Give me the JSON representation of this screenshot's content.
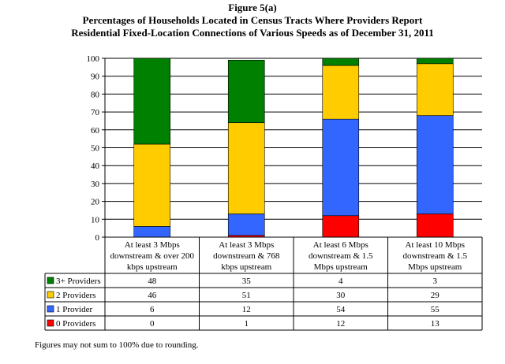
{
  "chart_data": {
    "type": "bar",
    "stacked": true,
    "title": "Figure 5(a)",
    "subtitle": [
      "Percentages of Households Located in Census Tracts Where Providers Report",
      "Residential Fixed-Location Connections of Various Speeds as of December 31, 2011"
    ],
    "categories": [
      [
        "At least 3 Mbps",
        "downstream & over 200",
        "kbps upstream"
      ],
      [
        "At least 3 Mbps",
        "downstream & 768",
        "kbps upstream"
      ],
      [
        "At least 6 Mbps",
        "downstream & 1.5",
        "Mbps upstream"
      ],
      [
        "At least 10 Mbps",
        "downstream & 1.5",
        "Mbps upstream"
      ]
    ],
    "series": [
      {
        "name": "0 Providers",
        "color": "#ff0000",
        "values": [
          0,
          1,
          12,
          13
        ]
      },
      {
        "name": "1 Provider",
        "color": "#3366ff",
        "values": [
          6,
          12,
          54,
          55
        ]
      },
      {
        "name": "2 Providers",
        "color": "#ffcc00",
        "values": [
          46,
          51,
          30,
          29
        ]
      },
      {
        "name": "3+ Providers",
        "color": "#008000",
        "values": [
          48,
          35,
          4,
          3
        ]
      }
    ],
    "table_order": [
      3,
      2,
      1,
      0
    ],
    "ylim": [
      0,
      100
    ],
    "yticks": [
      0,
      10,
      20,
      30,
      40,
      50,
      60,
      70,
      80,
      90,
      100
    ],
    "grid": true,
    "legend": "data table"
  },
  "footnote": "Figures may not sum to 100% due to rounding."
}
